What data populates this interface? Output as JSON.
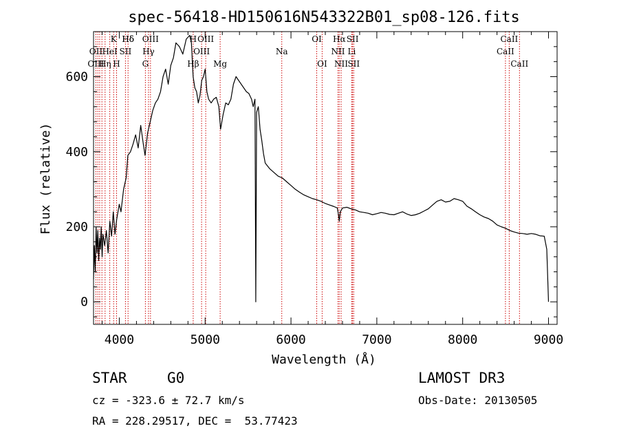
{
  "chart_data": {
    "type": "line",
    "title": "spec-56418-HD150616N543322B01_sp08-126.fits",
    "xlabel": "Wavelength (Å)",
    "ylabel": "Flux (relative)",
    "xlim": [
      3700,
      9100
    ],
    "ylim": [
      -60,
      720
    ],
    "xticks": [
      4000,
      5000,
      6000,
      7000,
      8000,
      9000
    ],
    "yticks": [
      0,
      200,
      400,
      600
    ],
    "grid": false,
    "series": [
      {
        "points": [
          [
            3700,
            60
          ],
          [
            3710,
            150
          ],
          [
            3720,
            80
          ],
          [
            3730,
            200
          ],
          [
            3740,
            130
          ],
          [
            3750,
            190
          ],
          [
            3760,
            110
          ],
          [
            3770,
            170
          ],
          [
            3780,
            140
          ],
          [
            3790,
            200
          ],
          [
            3800,
            120
          ],
          [
            3810,
            180
          ],
          [
            3830,
            150
          ],
          [
            3850,
            190
          ],
          [
            3870,
            130
          ],
          [
            3890,
            215
          ],
          [
            3910,
            175
          ],
          [
            3930,
            240
          ],
          [
            3950,
            180
          ],
          [
            3970,
            220
          ],
          [
            4000,
            260
          ],
          [
            4020,
            240
          ],
          [
            4050,
            300
          ],
          [
            4080,
            330
          ],
          [
            4100,
            390
          ],
          [
            4130,
            400
          ],
          [
            4160,
            420
          ],
          [
            4190,
            445
          ],
          [
            4220,
            410
          ],
          [
            4250,
            470
          ],
          [
            4280,
            420
          ],
          [
            4300,
            390
          ],
          [
            4330,
            450
          ],
          [
            4360,
            480
          ],
          [
            4390,
            510
          ],
          [
            4420,
            530
          ],
          [
            4450,
            540
          ],
          [
            4480,
            560
          ],
          [
            4510,
            600
          ],
          [
            4540,
            620
          ],
          [
            4570,
            580
          ],
          [
            4600,
            630
          ],
          [
            4630,
            650
          ],
          [
            4660,
            690
          ],
          [
            4700,
            680
          ],
          [
            4740,
            660
          ],
          [
            4780,
            700
          ],
          [
            4820,
            710
          ],
          [
            4840,
            690
          ],
          [
            4860,
            600
          ],
          [
            4880,
            570
          ],
          [
            4900,
            560
          ],
          [
            4920,
            530
          ],
          [
            4940,
            550
          ],
          [
            4960,
            590
          ],
          [
            4980,
            600
          ],
          [
            5000,
            620
          ],
          [
            5020,
            560
          ],
          [
            5040,
            540
          ],
          [
            5070,
            530
          ],
          [
            5100,
            540
          ],
          [
            5130,
            545
          ],
          [
            5160,
            520
          ],
          [
            5180,
            460
          ],
          [
            5210,
            500
          ],
          [
            5240,
            530
          ],
          [
            5270,
            525
          ],
          [
            5300,
            540
          ],
          [
            5330,
            580
          ],
          [
            5360,
            600
          ],
          [
            5390,
            590
          ],
          [
            5420,
            580
          ],
          [
            5450,
            570
          ],
          [
            5480,
            560
          ],
          [
            5510,
            555
          ],
          [
            5540,
            540
          ],
          [
            5560,
            520
          ],
          [
            5580,
            540
          ],
          [
            5590,
            0
          ],
          [
            5600,
            505
          ],
          [
            5620,
            520
          ],
          [
            5640,
            460
          ],
          [
            5660,
            430
          ],
          [
            5680,
            395
          ],
          [
            5700,
            370
          ],
          [
            5750,
            355
          ],
          [
            5800,
            345
          ],
          [
            5850,
            335
          ],
          [
            5900,
            330
          ],
          [
            5950,
            320
          ],
          [
            6000,
            310
          ],
          [
            6050,
            300
          ],
          [
            6100,
            292
          ],
          [
            6150,
            285
          ],
          [
            6200,
            280
          ],
          [
            6250,
            275
          ],
          [
            6300,
            272
          ],
          [
            6350,
            268
          ],
          [
            6400,
            262
          ],
          [
            6450,
            258
          ],
          [
            6500,
            254
          ],
          [
            6540,
            250
          ],
          [
            6555,
            230
          ],
          [
            6563,
            215
          ],
          [
            6575,
            240
          ],
          [
            6600,
            250
          ],
          [
            6650,
            252
          ],
          [
            6700,
            248
          ],
          [
            6750,
            245
          ],
          [
            6800,
            240
          ],
          [
            6850,
            238
          ],
          [
            6900,
            236
          ],
          [
            6950,
            232
          ],
          [
            7000,
            235
          ],
          [
            7050,
            238
          ],
          [
            7100,
            236
          ],
          [
            7150,
            233
          ],
          [
            7200,
            232
          ],
          [
            7250,
            236
          ],
          [
            7300,
            240
          ],
          [
            7350,
            234
          ],
          [
            7400,
            230
          ],
          [
            7450,
            232
          ],
          [
            7500,
            236
          ],
          [
            7550,
            242
          ],
          [
            7600,
            248
          ],
          [
            7650,
            258
          ],
          [
            7700,
            268
          ],
          [
            7750,
            272
          ],
          [
            7800,
            266
          ],
          [
            7850,
            268
          ],
          [
            7900,
            275
          ],
          [
            7950,
            272
          ],
          [
            8000,
            268
          ],
          [
            8050,
            255
          ],
          [
            8100,
            248
          ],
          [
            8150,
            240
          ],
          [
            8200,
            232
          ],
          [
            8250,
            226
          ],
          [
            8300,
            222
          ],
          [
            8350,
            215
          ],
          [
            8400,
            205
          ],
          [
            8450,
            200
          ],
          [
            8500,
            196
          ],
          [
            8550,
            190
          ],
          [
            8600,
            186
          ],
          [
            8650,
            183
          ],
          [
            8700,
            182
          ],
          [
            8750,
            180
          ],
          [
            8800,
            182
          ],
          [
            8850,
            180
          ],
          [
            8900,
            176
          ],
          [
            8950,
            175
          ],
          [
            8980,
            140
          ],
          [
            9000,
            0
          ]
        ]
      }
    ],
    "annotations": [
      {
        "label": "Hδ",
        "x": 4102,
        "row": 0
      },
      {
        "label": "K",
        "x": 3934,
        "row": 0
      },
      {
        "label": "Hδ",
        "x": 4102,
        "row": 0
      },
      {
        "label": "OIII",
        "x": 4363,
        "row": 0
      },
      {
        "label": "H",
        "x": 4861,
        "row": 0
      },
      {
        "label": "OIII",
        "x": 5007,
        "row": 0
      },
      {
        "label": "OI",
        "x": 6300,
        "row": 0
      },
      {
        "label": "Hα",
        "x": 6563,
        "row": 0
      },
      {
        "label": "SII",
        "x": 6717,
        "row": 0
      },
      {
        "label": "CaII",
        "x": 8542,
        "row": 0
      },
      {
        "label": "OII",
        "x": 3727,
        "row": 1
      },
      {
        "label": "HeI",
        "x": 3889,
        "row": 1
      },
      {
        "label": "SII",
        "x": 4072,
        "row": 1
      },
      {
        "label": "Hγ",
        "x": 4340,
        "row": 1
      },
      {
        "label": "OIII",
        "x": 4959,
        "row": 1
      },
      {
        "label": "Na",
        "x": 5893,
        "row": 1
      },
      {
        "label": "NII",
        "x": 6548,
        "row": 1
      },
      {
        "label": "Li",
        "x": 6708,
        "row": 1
      },
      {
        "label": "CaII",
        "x": 8498,
        "row": 1
      },
      {
        "label": "OIII",
        "x": 3727,
        "row": 2
      },
      {
        "label": "Hη",
        "x": 3835,
        "row": 2
      },
      {
        "label": "H",
        "x": 3968,
        "row": 2
      },
      {
        "label": "G",
        "x": 4304,
        "row": 2
      },
      {
        "label": "Hβ",
        "x": 4861,
        "row": 2
      },
      {
        "label": "Mg",
        "x": 5175,
        "row": 2
      },
      {
        "label": "OI",
        "x": 6363,
        "row": 2
      },
      {
        "label": "NII",
        "x": 6584,
        "row": 2
      },
      {
        "label": "SII",
        "x": 6731,
        "row": 2
      },
      {
        "label": "CaII",
        "x": 8662,
        "row": 2
      }
    ],
    "marker_lines": [
      3727,
      3750,
      3771,
      3798,
      3835,
      3889,
      3934,
      3968,
      4072,
      4102,
      4304,
      4340,
      4363,
      4861,
      4959,
      5007,
      5175,
      5893,
      6300,
      6363,
      6548,
      6563,
      6584,
      6708,
      6717,
      6731,
      8498,
      8542,
      8662
    ],
    "marker_color": "#cc0000"
  },
  "info": {
    "object_class": "STAR",
    "subclass": "G0",
    "survey": "LAMOST DR3",
    "cz": "cz = -323.6 ± 72.7 km/s",
    "obs_date": "Obs-Date: 20130505",
    "coords": "RA = 228.29517, DEC =  53.77423"
  }
}
